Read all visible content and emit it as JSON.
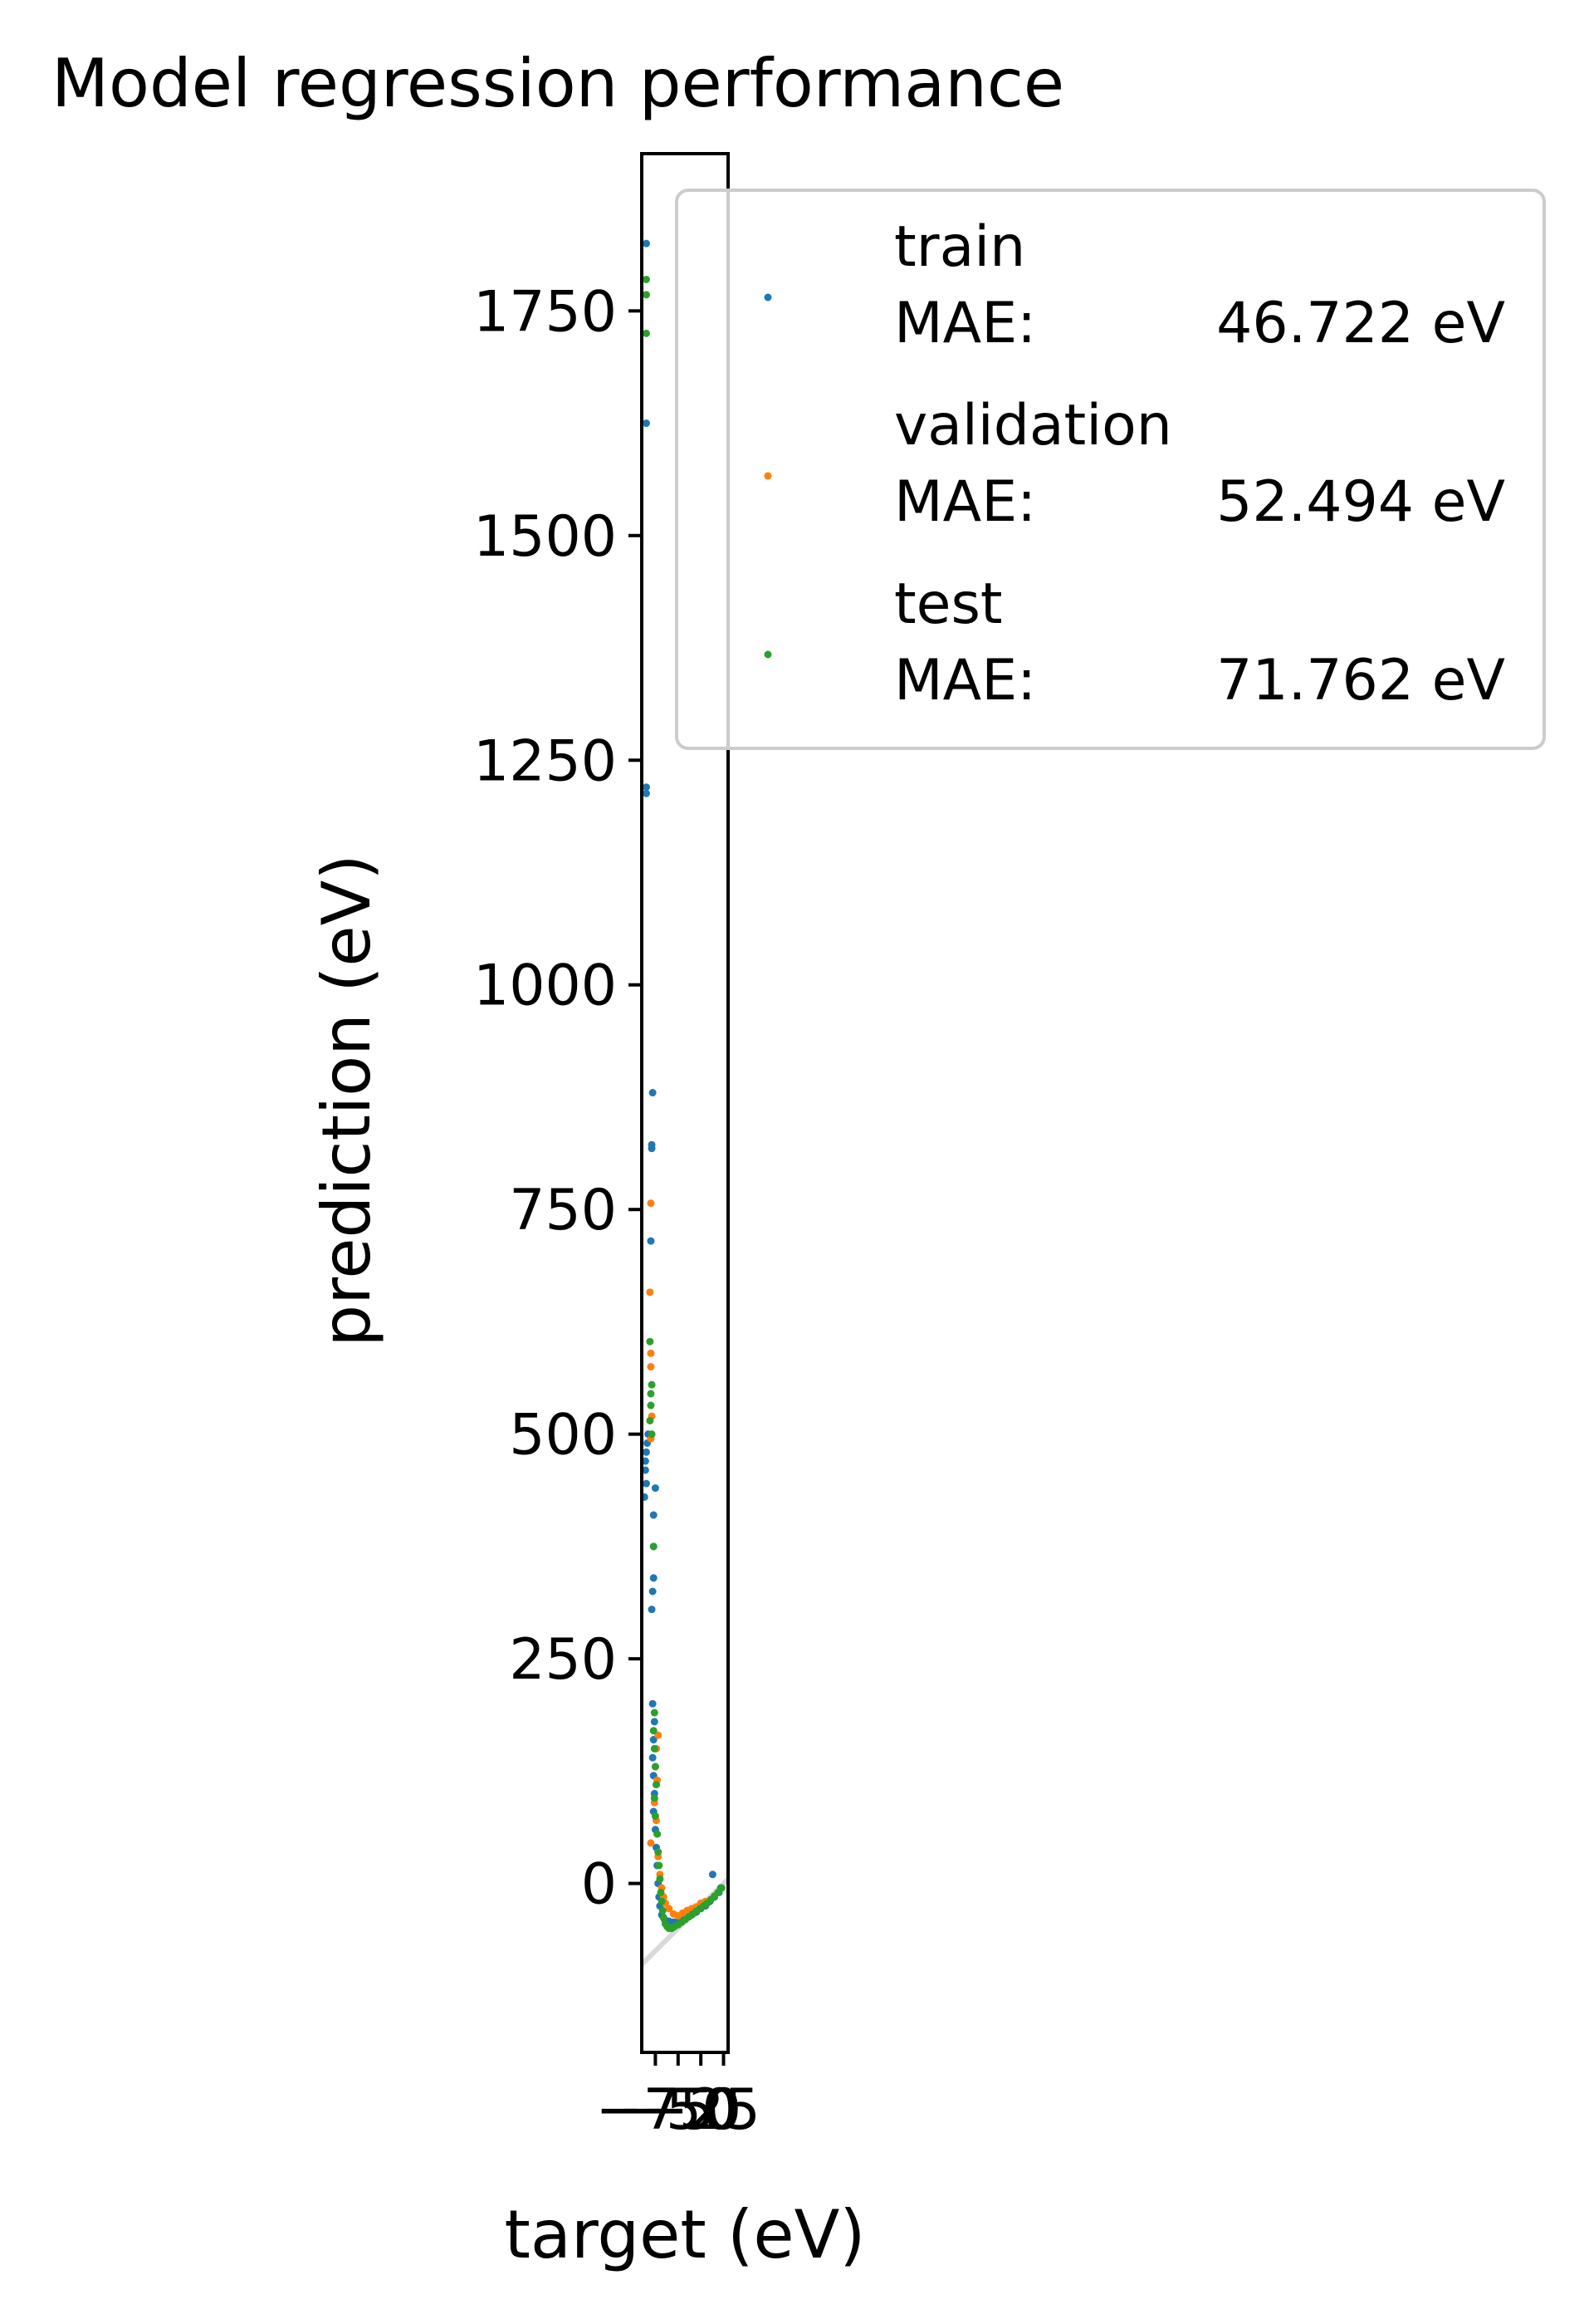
{
  "chart_data": {
    "type": "scatter",
    "title": "Model regression performance",
    "xlabel": "target (eV)",
    "ylabel": "prediction (eV)",
    "xlim": [
      -90,
      5
    ],
    "ylim": [
      -188,
      1925
    ],
    "xticks": [
      -75,
      -50,
      -25,
      0
    ],
    "xtick_labels": [
      "−75",
      "−50",
      "−25",
      "0"
    ],
    "yticks": [
      0,
      250,
      500,
      750,
      1000,
      1250,
      1500,
      1750
    ],
    "ytick_labels": [
      "0",
      "250",
      "500",
      "750",
      "1000",
      "1250",
      "1500",
      "1750"
    ],
    "identity_line": true,
    "grid": false,
    "legend_position": "upper right (outside axes)",
    "series": [
      {
        "name": "train",
        "mae_label": "MAE:",
        "mae_value": "46.722 eV",
        "color": "#1f77b4",
        "points": [
          [
            -85,
            1825
          ],
          [
            -85,
            1625
          ],
          [
            -85,
            1220
          ],
          [
            -85,
            1213
          ],
          [
            -78,
            880
          ],
          [
            -79,
            822
          ],
          [
            -79,
            818
          ],
          [
            -80,
            715
          ],
          [
            -83,
            500
          ],
          [
            -84,
            490
          ],
          [
            -85,
            480
          ],
          [
            -86,
            470
          ],
          [
            -86,
            460
          ],
          [
            -85,
            445
          ],
          [
            -75,
            440
          ],
          [
            -87,
            430
          ],
          [
            -77,
            410
          ],
          [
            -77,
            375
          ],
          [
            -77,
            340
          ],
          [
            -78,
            325
          ],
          [
            -79,
            305
          ],
          [
            -78,
            200
          ],
          [
            -76,
            180
          ],
          [
            -77,
            160
          ],
          [
            -78,
            140
          ],
          [
            -77,
            120
          ],
          [
            -76,
            100
          ],
          [
            -77,
            80
          ],
          [
            -75,
            60
          ],
          [
            -74,
            40
          ],
          [
            -73,
            20
          ],
          [
            -72,
            0
          ],
          [
            -71,
            -15
          ],
          [
            -70,
            -25
          ],
          [
            -68,
            -35
          ],
          [
            -65,
            -40
          ],
          [
            -60,
            -42
          ],
          [
            -55,
            -43
          ],
          [
            -50,
            -42
          ],
          [
            -45,
            -40
          ],
          [
            -40,
            -38
          ],
          [
            -35,
            -35
          ],
          [
            -30,
            -32
          ],
          [
            -25,
            -28
          ],
          [
            -20,
            -25
          ],
          [
            -15,
            -20
          ],
          [
            -10,
            -15
          ],
          [
            -5,
            -10
          ],
          [
            -12,
            10
          ],
          [
            -3,
            -5
          ]
        ]
      },
      {
        "name": "validation",
        "mae_label": "MAE:",
        "mae_value": "52.494 eV",
        "color": "#ff7f0e",
        "points": [
          [
            -80,
            757
          ],
          [
            -81,
            658
          ],
          [
            -80,
            590
          ],
          [
            -80,
            575
          ],
          [
            -79,
            520
          ],
          [
            -80,
            495
          ],
          [
            -72,
            165
          ],
          [
            -74,
            150
          ],
          [
            -75,
            130
          ],
          [
            -73,
            115
          ],
          [
            -76,
            90
          ],
          [
            -74,
            70
          ],
          [
            -80,
            45
          ],
          [
            -72,
            30
          ],
          [
            -70,
            10
          ],
          [
            -68,
            -5
          ],
          [
            -66,
            -15
          ],
          [
            -64,
            -22
          ],
          [
            -60,
            -28
          ],
          [
            -55,
            -34
          ],
          [
            -50,
            -36
          ],
          [
            -45,
            -33
          ],
          [
            -40,
            -30
          ],
          [
            -35,
            -28
          ],
          [
            -30,
            -26
          ],
          [
            -25,
            -22
          ],
          [
            -20,
            -20
          ]
        ]
      },
      {
        "name": "test",
        "mae_label": "MAE:",
        "mae_value": "71.762 eV",
        "color": "#2ca02c",
        "points": [
          [
            -85,
            1785
          ],
          [
            -85,
            1768
          ],
          [
            -85,
            1725
          ],
          [
            -81,
            603
          ],
          [
            -79,
            555
          ],
          [
            -80,
            545
          ],
          [
            -80,
            532
          ],
          [
            -81,
            515
          ],
          [
            -79,
            500
          ],
          [
            -77,
            375
          ],
          [
            -76,
            190
          ],
          [
            -77,
            170
          ],
          [
            -76,
            150
          ],
          [
            -75,
            130
          ],
          [
            -74,
            110
          ],
          [
            -76,
            95
          ],
          [
            -75,
            75
          ],
          [
            -73,
            55
          ],
          [
            -72,
            35
          ],
          [
            -71,
            20
          ],
          [
            -70,
            5
          ],
          [
            -69,
            -10
          ],
          [
            -68,
            -20
          ],
          [
            -67,
            -30
          ],
          [
            -66,
            -38
          ],
          [
            -64,
            -45
          ],
          [
            -62,
            -48
          ],
          [
            -60,
            -50
          ],
          [
            -57,
            -50
          ],
          [
            -54,
            -48
          ],
          [
            -50,
            -46
          ],
          [
            -46,
            -43
          ],
          [
            -42,
            -40
          ],
          [
            -38,
            -37
          ],
          [
            -34,
            -34
          ],
          [
            -30,
            -31
          ],
          [
            -26,
            -28
          ],
          [
            -22,
            -25
          ],
          [
            -18,
            -22
          ],
          [
            -14,
            -18
          ],
          [
            -10,
            -14
          ],
          [
            -6,
            -10
          ],
          [
            -2,
            -5
          ]
        ]
      }
    ]
  }
}
